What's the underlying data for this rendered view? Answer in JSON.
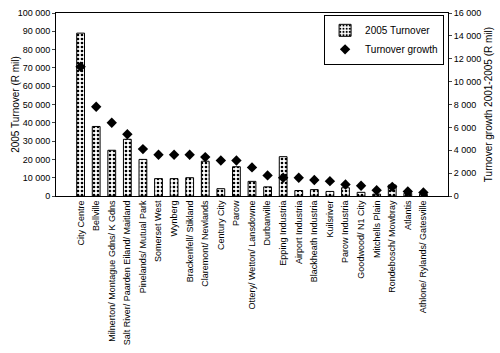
{
  "chart_data": {
    "type": "bar",
    "categories": [
      "City Centre",
      "Bellville",
      "Milnerton/ Montague Gdns/ K Gdns",
      "Salt River/ Paarden Eiland/ Maitland",
      "Pinelands/ Mutual Park",
      "Somerset West",
      "Wynberg",
      "Brackenfell/ Stikland",
      "Claremont/ Newlands",
      "Century City",
      "Parow",
      "Ottery/ Wetton/ Lansdowne",
      "Durbanville",
      "Epping Industria",
      "Airport Industria",
      "Blackheath Industria",
      "Kuilsriver",
      "Parow Industria",
      "Goodwood/ N1 City",
      "Mitchells Plain",
      "Rondebosch/ Mowbray",
      "Atlantis",
      "Athlone/ Rylands/ Gatesville"
    ],
    "series": [
      {
        "name": "2005 Turnover",
        "type": "bar",
        "color": "#000000",
        "values": [
          89000,
          38000,
          25000,
          31000,
          20000,
          9500,
          9500,
          10000,
          19000,
          4000,
          16000,
          8000,
          5000,
          21500,
          3000,
          3500,
          2500,
          4500,
          2000,
          1000,
          6000,
          1500,
          1000
        ]
      },
      {
        "name": "Turnover growth",
        "type": "scatter",
        "marker": "diamond",
        "color": "#000000",
        "axis": "y2",
        "values": [
          11300,
          7800,
          6400,
          5400,
          4100,
          3600,
          3600,
          3600,
          3400,
          3100,
          3100,
          2500,
          1800,
          1600,
          1600,
          1400,
          1300,
          1000,
          900,
          500,
          800,
          400,
          300
        ]
      }
    ],
    "y_label": "2005 Turnover (R mil)",
    "y2_label": "Turnover growth 2001-2005 (R mil)",
    "ylim": [
      0,
      100000
    ],
    "yticks": [
      0,
      {
        "value": 10000,
        "label": "10 000"
      },
      {
        "value": 20000,
        "label": "20 000"
      },
      {
        "value": 30000,
        "label": "30 000"
      },
      {
        "value": 40000,
        "label": "40 000"
      },
      {
        "value": 50000,
        "label": "50 000"
      },
      {
        "value": 60000,
        "label": "60 000"
      },
      {
        "value": 70000,
        "label": "70 000"
      },
      {
        "value": 80000,
        "label": "80 000"
      },
      {
        "value": 90000,
        "label": "90 000"
      },
      {
        "value": 100000,
        "label": "100 000"
      }
    ],
    "y2lim": [
      0,
      16000
    ],
    "y2ticks": [
      0,
      {
        "value": 2000,
        "label": "2 000"
      },
      {
        "value": 4000,
        "label": "4 000"
      },
      {
        "value": 6000,
        "label": "6 000"
      },
      {
        "value": 8000,
        "label": "8 000"
      },
      {
        "value": 10000,
        "label": "10 000"
      },
      {
        "value": 12000,
        "label": "12 000"
      },
      {
        "value": 14000,
        "label": "14 000"
      },
      {
        "value": 16000,
        "label": "16 000"
      }
    ],
    "grid": false,
    "legend": "upper right"
  }
}
